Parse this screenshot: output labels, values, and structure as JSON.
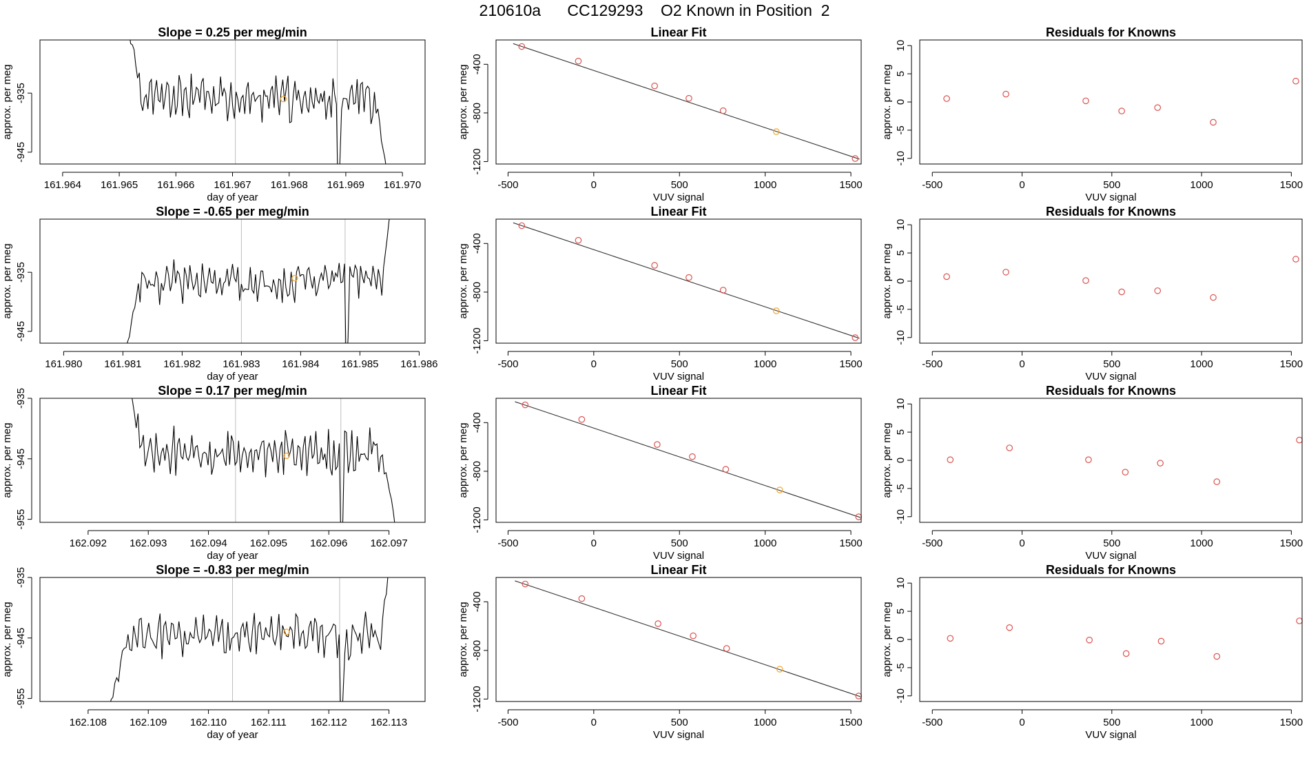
{
  "page_title": "210610a      CC129293    O2 Known in Position  2",
  "colors": {
    "trace": "#000000",
    "vline": "#bebebe",
    "point": "#d9534f",
    "highlight": "#f0a830",
    "fit_line": "#333333",
    "frame": "#000000"
  },
  "chart_data": [
    {
      "type": "line",
      "row": 1,
      "col": 1,
      "title": "Slope =  0.25  per meg/min",
      "xlabel": "day of year",
      "ylabel": "approx. per meg",
      "xlim": [
        161.9636,
        161.9704
      ],
      "ylim": [
        -947,
        -926
      ],
      "xticks": [
        161.964,
        161.965,
        161.966,
        161.967,
        161.968,
        161.969,
        161.97
      ],
      "xtick_labels": [
        "161.964",
        "161.965",
        "161.966",
        "161.967",
        "161.968",
        "161.969",
        "161.970"
      ],
      "yticks": [
        -935,
        -945
      ],
      "ytick_labels": [
        "-935",
        "-945"
      ],
      "vlines": [
        161.96705,
        161.96885
      ],
      "trace": {
        "x_start": 161.96514,
        "x_end": 161.96972,
        "y_mean": -936,
        "amplitude": 2.8,
        "start_y": -923,
        "end_y": -948,
        "seed": 11,
        "dip_x": 161.96885,
        "dip_depth": 18
      },
      "highlight_point": {
        "x": 161.9679,
        "y": -936
      }
    },
    {
      "type": "scatter",
      "row": 1,
      "col": 2,
      "title": "Linear Fit",
      "xlabel": "VUV signal",
      "ylabel": "approx. per meg",
      "xlim": [
        -570,
        1560
      ],
      "ylim": [
        -1220,
        -200
      ],
      "xticks": [
        -500,
        0,
        500,
        1000,
        1500
      ],
      "xtick_labels": [
        "-500",
        "0",
        "500",
        "1000",
        "1500"
      ],
      "yticks": [
        -400,
        -800,
        -1200
      ],
      "ytick_labels": [
        "-400",
        "-800",
        "-1200"
      ],
      "x": [
        -420,
        -90,
        355,
        555,
        755,
        1065,
        1525
      ],
      "y": [
        -254,
        -374,
        -578,
        -680,
        -782,
        -954,
        -1175
      ],
      "highlight_index": 5,
      "fit_line": {
        "x": [
          -470,
          1550
        ],
        "y": [
          -230,
          -1180
        ]
      }
    },
    {
      "type": "scatter",
      "row": 1,
      "col": 3,
      "title": "Residuals for Knowns",
      "xlabel": "VUV signal",
      "ylabel": "approx. per meg",
      "xlim": [
        -570,
        1560
      ],
      "ylim": [
        -11,
        11
      ],
      "xticks": [
        -500,
        0,
        500,
        1000,
        1500
      ],
      "xtick_labels": [
        "-500",
        "0",
        "500",
        "1000",
        "1500"
      ],
      "yticks": [
        10,
        5,
        0,
        -5,
        -10
      ],
      "ytick_labels": [
        "10",
        "5",
        "0",
        "-5",
        "-10"
      ],
      "x": [
        -420,
        -90,
        355,
        555,
        755,
        1065,
        1525
      ],
      "y": [
        0.6,
        1.4,
        0.2,
        -1.6,
        -1.0,
        -3.6,
        3.7
      ]
    },
    {
      "type": "line",
      "row": 2,
      "col": 1,
      "title": "Slope =  -0.65  per meg/min",
      "xlabel": "day of year",
      "ylabel": "approx. per meg",
      "xlim": [
        161.9796,
        161.9861
      ],
      "ylim": [
        -947,
        -926
      ],
      "xticks": [
        161.98,
        161.981,
        161.982,
        161.983,
        161.984,
        161.985,
        161.986
      ],
      "xtick_labels": [
        "161.980",
        "161.981",
        "161.982",
        "161.983",
        "161.984",
        "161.985",
        "161.986"
      ],
      "yticks": [
        -935,
        -945
      ],
      "ytick_labels": [
        "-935",
        "-945"
      ],
      "vlines": [
        161.983,
        161.98475
      ],
      "trace": {
        "x_start": 161.98105,
        "x_end": 161.98555,
        "y_mean": -936.5,
        "amplitude": 2.6,
        "start_y": -948,
        "end_y": -922,
        "seed": 23,
        "dip_x": 161.98475,
        "dip_depth": 16
      },
      "highlight_point": {
        "x": 161.9839,
        "y": -936
      }
    },
    {
      "type": "scatter",
      "row": 2,
      "col": 2,
      "title": "Linear Fit",
      "xlabel": "VUV signal",
      "ylabel": "approx. per meg",
      "xlim": [
        -570,
        1560
      ],
      "ylim": [
        -1220,
        -200
      ],
      "xticks": [
        -500,
        0,
        500,
        1000,
        1500
      ],
      "xtick_labels": [
        "-500",
        "0",
        "500",
        "1000",
        "1500"
      ],
      "yticks": [
        -400,
        -800,
        -1200
      ],
      "ytick_labels": [
        "-400",
        "-800",
        "-1200"
      ],
      "x": [
        -420,
        -90,
        355,
        555,
        755,
        1065,
        1525
      ],
      "y": [
        -254,
        -374,
        -580,
        -680,
        -784,
        -954,
        -1175
      ],
      "highlight_index": 5,
      "fit_line": {
        "x": [
          -470,
          1550
        ],
        "y": [
          -230,
          -1180
        ]
      }
    },
    {
      "type": "scatter",
      "row": 2,
      "col": 3,
      "title": "Residuals for Knowns",
      "xlabel": "VUV signal",
      "ylabel": "approx. per meg",
      "xlim": [
        -570,
        1560
      ],
      "ylim": [
        -11,
        11
      ],
      "xticks": [
        -500,
        0,
        500,
        1000,
        1500
      ],
      "xtick_labels": [
        "-500",
        "0",
        "500",
        "1000",
        "1500"
      ],
      "yticks": [
        10,
        5,
        0,
        -5,
        -10
      ],
      "ytick_labels": [
        "10",
        "5",
        "0",
        "-5",
        "-10"
      ],
      "x": [
        -420,
        -90,
        355,
        555,
        755,
        1065,
        1525
      ],
      "y": [
        0.8,
        1.6,
        0.1,
        -1.9,
        -1.7,
        -2.9,
        3.9
      ]
    },
    {
      "type": "line",
      "row": 3,
      "col": 1,
      "title": "Slope =  0.17  per meg/min",
      "xlabel": "day of year",
      "ylabel": "approx. per meg",
      "xlim": [
        162.0912,
        162.0976
      ],
      "ylim": [
        -955.5,
        -935
      ],
      "xticks": [
        162.092,
        162.093,
        162.094,
        162.095,
        162.096,
        162.097
      ],
      "xtick_labels": [
        "162.092",
        "162.093",
        "162.094",
        "162.095",
        "162.096",
        "162.097"
      ],
      "yticks": [
        -935,
        -945,
        -955
      ],
      "ytick_labels": [
        "-935",
        "-945",
        "-955"
      ],
      "vlines": [
        162.09445,
        162.0962
      ],
      "trace": {
        "x_start": 162.09262,
        "x_end": 162.0971,
        "y_mean": -944,
        "amplitude": 2.8,
        "start_y": -930,
        "end_y": -956,
        "seed": 37,
        "dip_x": 162.0962,
        "dip_depth": 18
      },
      "highlight_point": {
        "x": 162.0953,
        "y": -944.5
      }
    },
    {
      "type": "scatter",
      "row": 3,
      "col": 2,
      "title": "Linear Fit",
      "xlabel": "VUV signal",
      "ylabel": "approx. per meg",
      "xlim": [
        -570,
        1560
      ],
      "ylim": [
        -1220,
        -200
      ],
      "xticks": [
        -500,
        0,
        500,
        1000,
        1500
      ],
      "xtick_labels": [
        "-500",
        "0",
        "500",
        "1000",
        "1500"
      ],
      "yticks": [
        -400,
        -800,
        -1200
      ],
      "ytick_labels": [
        "-400",
        "-800",
        "-1200"
      ],
      "x": [
        -400,
        -70,
        370,
        575,
        770,
        1085,
        1545
      ],
      "y": [
        -254,
        -374,
        -580,
        -680,
        -784,
        -954,
        -1175
      ],
      "highlight_index": 5,
      "fit_line": {
        "x": [
          -460,
          1555
        ],
        "y": [
          -228,
          -1180
        ]
      }
    },
    {
      "type": "scatter",
      "row": 3,
      "col": 3,
      "title": "Residuals for Knowns",
      "xlabel": "VUV signal",
      "ylabel": "approx. per meg",
      "xlim": [
        -570,
        1560
      ],
      "ylim": [
        -11,
        11
      ],
      "xticks": [
        -500,
        0,
        500,
        1000,
        1500
      ],
      "xtick_labels": [
        "-500",
        "0",
        "500",
        "1000",
        "1500"
      ],
      "yticks": [
        10,
        5,
        0,
        -5,
        -10
      ],
      "ytick_labels": [
        "10",
        "5",
        "0",
        "-5",
        "-10"
      ],
      "x": [
        -400,
        -70,
        370,
        575,
        770,
        1085,
        1545
      ],
      "y": [
        0.1,
        2.2,
        0.1,
        -2.1,
        -0.5,
        -3.8,
        3.6
      ]
    },
    {
      "type": "line",
      "row": 4,
      "col": 1,
      "title": "Slope =  -0.83  per meg/min",
      "xlabel": "day of year",
      "ylabel": "approx. per meg",
      "xlim": [
        162.1072,
        162.1136
      ],
      "ylim": [
        -955.5,
        -935
      ],
      "xticks": [
        162.108,
        162.109,
        162.11,
        162.111,
        162.112,
        162.113
      ],
      "xtick_labels": [
        "162.108",
        "162.109",
        "162.110",
        "162.111",
        "162.112",
        "162.113"
      ],
      "yticks": [
        -935,
        -945,
        -955
      ],
      "ytick_labels": [
        "-935",
        "-945",
        "-955"
      ],
      "vlines": [
        162.1104,
        162.11218
      ],
      "trace": {
        "x_start": 162.10835,
        "x_end": 162.11305,
        "y_mean": -944.5,
        "amplitude": 2.7,
        "start_y": -957,
        "end_y": -930,
        "seed": 53,
        "dip_x": 162.11218,
        "dip_depth": 17
      },
      "highlight_point": {
        "x": 162.1113,
        "y": -944
      }
    },
    {
      "type": "scatter",
      "row": 4,
      "col": 2,
      "title": "Linear Fit",
      "xlabel": "VUV signal",
      "ylabel": "approx. per meg",
      "xlim": [
        -570,
        1560
      ],
      "ylim": [
        -1220,
        -200
      ],
      "xticks": [
        -500,
        0,
        500,
        1000,
        1500
      ],
      "xtick_labels": [
        "-500",
        "0",
        "500",
        "1000",
        "1500"
      ],
      "yticks": [
        -400,
        -800,
        -1200
      ],
      "ytick_labels": [
        "-400",
        "-800",
        "-1200"
      ],
      "x": [
        -400,
        -70,
        375,
        580,
        775,
        1085,
        1545
      ],
      "y": [
        -254,
        -374,
        -580,
        -680,
        -784,
        -954,
        -1175
      ],
      "highlight_index": 5,
      "fit_line": {
        "x": [
          -460,
          1555
        ],
        "y": [
          -228,
          -1180
        ]
      }
    },
    {
      "type": "scatter",
      "row": 4,
      "col": 3,
      "title": "Residuals for Knowns",
      "xlabel": "VUV signal",
      "ylabel": "approx. per meg",
      "xlim": [
        -570,
        1560
      ],
      "ylim": [
        -11,
        11
      ],
      "xticks": [
        -500,
        0,
        500,
        1000,
        1500
      ],
      "xtick_labels": [
        "-500",
        "0",
        "500",
        "1000",
        "1500"
      ],
      "yticks": [
        10,
        5,
        0,
        -5,
        -10
      ],
      "ytick_labels": [
        "10",
        "5",
        "0",
        "-5",
        "-10"
      ],
      "x": [
        -400,
        -70,
        375,
        580,
        775,
        1085,
        1545
      ],
      "y": [
        0.2,
        2.1,
        -0.1,
        -2.5,
        -0.3,
        -3.0,
        3.3
      ]
    }
  ]
}
